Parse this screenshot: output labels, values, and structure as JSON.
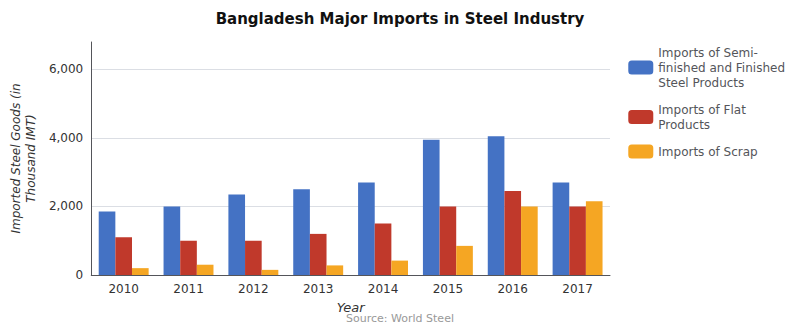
{
  "chart_data": {
    "type": "bar",
    "title": "Bangladesh Major Imports in Steel Industry",
    "xlabel": "Year",
    "ylabel": "Imported Steel Goods (in\nThousand IMT)",
    "annotations": [
      "Source: World Steel"
    ],
    "categories": [
      "2010",
      "2011",
      "2012",
      "2013",
      "2014",
      "2015",
      "2016",
      "2017"
    ],
    "series": [
      {
        "name": "Imports of Semi-\nfinished and Finished\nSteel Products",
        "color": "#4472C4",
        "values": [
          1850,
          2000,
          2350,
          2500,
          2700,
          3950,
          4050,
          2700
        ]
      },
      {
        "name": "Imports of Flat\nProducts",
        "color": "#C0392B",
        "values": [
          1100,
          1000,
          1000,
          1200,
          1500,
          2000,
          2450,
          2000
        ]
      },
      {
        "name": "Imports of Scrap",
        "color": "#F5A623",
        "values": [
          200,
          300,
          150,
          280,
          420,
          850,
          2000,
          2150
        ]
      }
    ],
    "ylim": [
      0,
      6800
    ],
    "yticks": [
      0,
      {
        "value": 2000,
        "label": "2,000"
      },
      {
        "value": 4000,
        "label": "4,000"
      },
      {
        "value": 6000,
        "label": "6,000"
      }
    ],
    "grid": true,
    "legend": "right"
  }
}
